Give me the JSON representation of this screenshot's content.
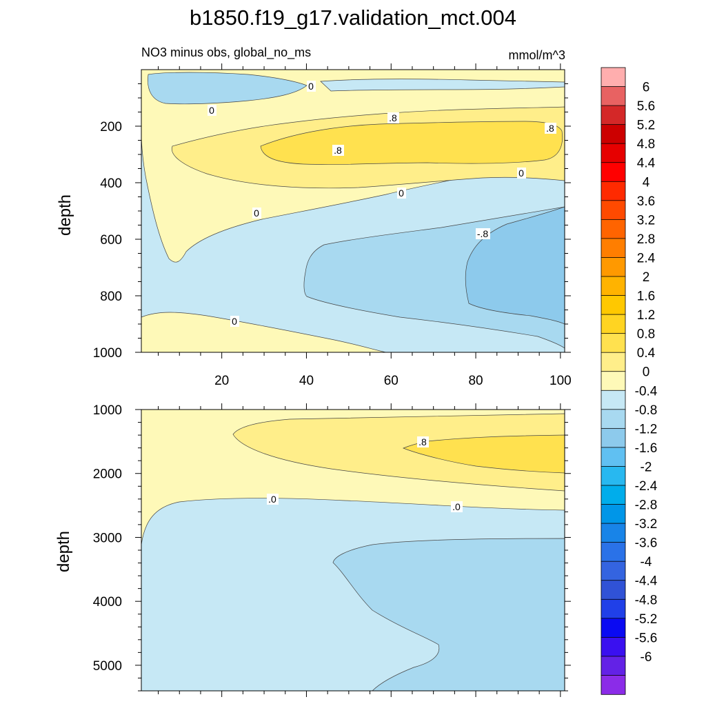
{
  "chart_data": {
    "type": "contour",
    "title": "b1850.f19_g17.validation_mct.004",
    "subtitle_left": "NO3 minus obs, global_no_ms",
    "subtitle_right": "mmol/m^3",
    "upper_panel": {
      "ylabel": "depth",
      "xlim": [
        1,
        101
      ],
      "ylim": [
        1000,
        0
      ],
      "x_ticks": [
        20,
        40,
        60,
        80,
        100
      ],
      "y_ticks": [
        200,
        400,
        600,
        800,
        1000
      ],
      "contour_labels": [
        "0",
        "0",
        ".8",
        ".8",
        ".8",
        "0",
        "0",
        "0",
        "-.8",
        "0"
      ]
    },
    "lower_panel": {
      "ylabel": "depth",
      "ylim": [
        5400,
        1000
      ],
      "y_ticks": [
        1000,
        2000,
        3000,
        4000,
        5000
      ],
      "contour_labels": [
        ".8",
        ".0",
        ".0"
      ]
    },
    "colorbar": {
      "labels": [
        "6",
        "5.6",
        "5.2",
        "4.8",
        "4.4",
        "4",
        "3.6",
        "3.2",
        "2.8",
        "2.4",
        "2",
        "1.6",
        "1.2",
        "0.8",
        "0.4",
        "0",
        "-0.4",
        "-0.8",
        "-1.2",
        "-1.6",
        "-2",
        "-2.4",
        "-2.8",
        "-3.2",
        "-3.6",
        "-4",
        "-4.4",
        "-4.8",
        "-5.2",
        "-5.6",
        "-6"
      ],
      "colors": [
        "#FFAEAE",
        "#E86262",
        "#D42828",
        "#CC0000",
        "#E60000",
        "#FF0000",
        "#FF2A00",
        "#FF4A00",
        "#FF6400",
        "#FF7E00",
        "#FF9900",
        "#FFB300",
        "#FFC800",
        "#FFD422",
        "#FFE14F",
        "#FFEE8A",
        "#FEF9B8",
        "#C6E8F5",
        "#A8D9F0",
        "#8DCAEC",
        "#60C0F2",
        "#28B8F0",
        "#00ADEB",
        "#0096E8",
        "#1884E8",
        "#2A72E8",
        "#3464E0",
        "#3052D6",
        "#2040E8",
        "#0A0AF2",
        "#3A10F0",
        "#6322E6",
        "#8B2CE8"
      ]
    }
  }
}
